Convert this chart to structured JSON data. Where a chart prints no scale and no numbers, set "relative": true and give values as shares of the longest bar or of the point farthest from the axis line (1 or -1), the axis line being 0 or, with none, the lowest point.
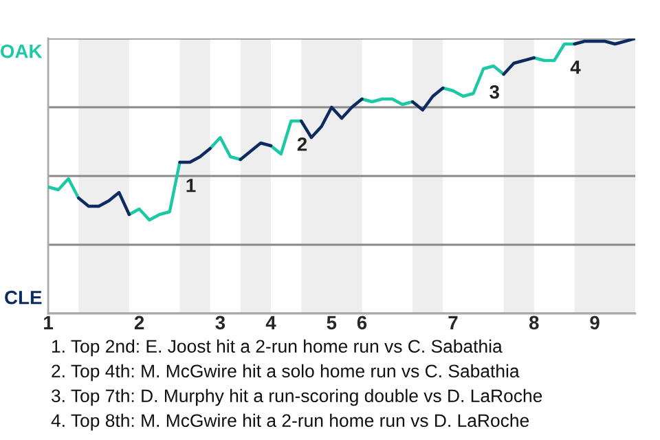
{
  "chart_data": {
    "type": "line",
    "relative": true,
    "grid": "y",
    "categories": [
      "1",
      null,
      null,
      null,
      null,
      null,
      null,
      null,
      null,
      "2",
      null,
      null,
      null,
      null,
      null,
      null,
      null,
      "3",
      null,
      null,
      null,
      null,
      "4",
      null,
      null,
      null,
      null,
      null,
      "5",
      null,
      null,
      "6",
      null,
      null,
      null,
      null,
      null,
      null,
      null,
      null,
      "7",
      null,
      null,
      null,
      null,
      null,
      null,
      null,
      "8",
      null,
      null,
      null,
      null,
      null,
      "9",
      null,
      null,
      null,
      null
    ],
    "series": [
      {
        "color": "#1dc9a4",
        "values": [
          0.46,
          0.45,
          0.49,
          0.42,
          null,
          null,
          null,
          null,
          0.36,
          0.38,
          0.34,
          0.36,
          0.37,
          0.55,
          null,
          null,
          0.6,
          0.64,
          0.57,
          0.56,
          null,
          null,
          0.61,
          0.58,
          0.7,
          0.7,
          null,
          null,
          null,
          null,
          null,
          0.78,
          0.77,
          0.78,
          0.78,
          0.76,
          0.77,
          null,
          null,
          0.82,
          0.81,
          0.79,
          0.8,
          0.89,
          0.9,
          0.87,
          null,
          null,
          0.93,
          0.92,
          0.92,
          0.98,
          0.98,
          null,
          null,
          null,
          null,
          null,
          null
        ]
      },
      {
        "color": "#0d2b5e",
        "values": [
          null,
          null,
          null,
          0.42,
          0.39,
          0.39,
          0.41,
          0.44,
          0.36,
          null,
          null,
          null,
          null,
          0.55,
          0.55,
          0.57,
          0.6,
          null,
          null,
          0.56,
          0.59,
          0.62,
          0.61,
          null,
          null,
          0.7,
          0.64,
          0.68,
          0.75,
          0.71,
          0.75,
          0.78,
          null,
          null,
          null,
          null,
          0.77,
          0.74,
          0.79,
          0.82,
          null,
          null,
          null,
          null,
          null,
          0.87,
          0.91,
          0.92,
          0.93,
          null,
          null,
          null,
          0.98,
          0.99,
          0.99,
          0.99,
          0.98,
          0.99,
          1.0
        ]
      }
    ],
    "annotations": [
      "OAK",
      "CLE",
      "1",
      "2",
      "3",
      "4",
      "1. Top 2nd: E. Joost hit a 2-run home run vs C. Sabathia",
      "2. Top 4th: M. McGwire hit a solo home run vs C. Sabathia",
      "3. Top 7th: D. Murphy hit a run-scoring double vs D. LaRoche",
      "4. Top 8th: M. McGwire hit a 2-run home run vs D. LaRoche"
    ]
  }
}
